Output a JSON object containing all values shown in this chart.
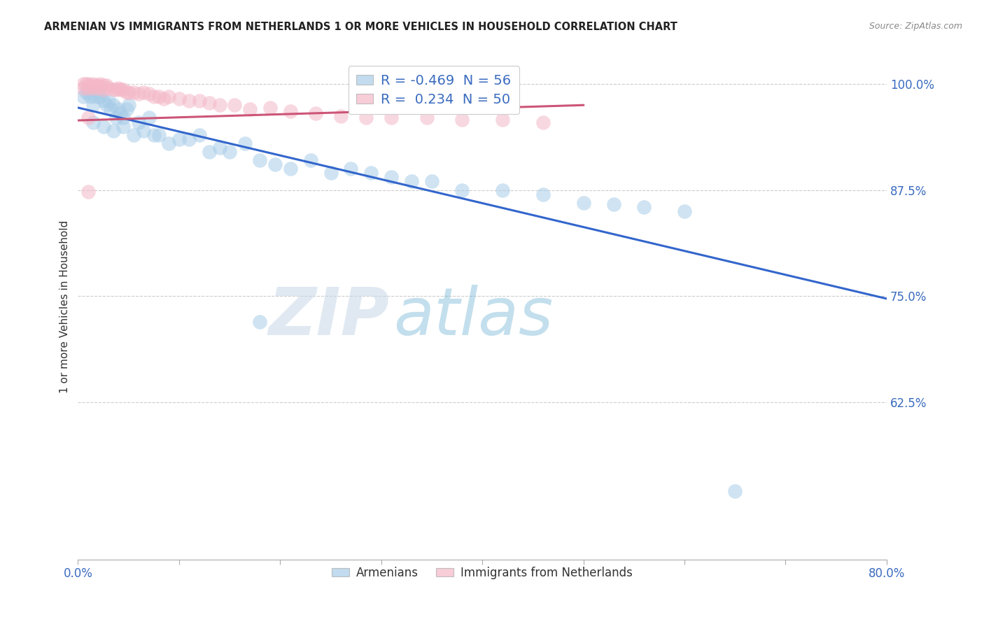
{
  "title": "ARMENIAN VS IMMIGRANTS FROM NETHERLANDS 1 OR MORE VEHICLES IN HOUSEHOLD CORRELATION CHART",
  "source": "Source: ZipAtlas.com",
  "ylabel": "1 or more Vehicles in Household",
  "legend1_label": "R = -0.469  N = 56",
  "legend2_label": "R =  0.234  N = 50",
  "legend_bottom": [
    "Armenians",
    "Immigrants from Netherlands"
  ],
  "blue_color": "#a8cce8",
  "pink_color": "#f4b8c8",
  "blue_line_color": "#3366cc",
  "pink_line_color": "#cc5577",
  "watermark_zip": "ZIP",
  "watermark_atlas": "atlas",
  "xlim": [
    0.0,
    0.8
  ],
  "ylim": [
    0.44,
    1.035
  ],
  "ytick_positions": [
    0.625,
    0.75,
    0.875,
    1.0
  ],
  "ytick_labels": [
    "62.5%",
    "75.0%",
    "87.5%",
    "100.0%"
  ],
  "xtick_positions": [
    0.0,
    0.1,
    0.2,
    0.3,
    0.4,
    0.5,
    0.6,
    0.7,
    0.8
  ],
  "blue_trend_x": [
    0.0,
    0.8
  ],
  "blue_trend_y": [
    0.972,
    0.747
  ],
  "pink_trend_x": [
    0.0,
    0.5
  ],
  "pink_trend_y": [
    0.957,
    0.975
  ],
  "arm_x": [
    0.005,
    0.008,
    0.01,
    0.012,
    0.015,
    0.018,
    0.02,
    0.022,
    0.025,
    0.028,
    0.03,
    0.032,
    0.035,
    0.038,
    0.04,
    0.042,
    0.045,
    0.048,
    0.05,
    0.015,
    0.025,
    0.035,
    0.045,
    0.055,
    0.06,
    0.065,
    0.07,
    0.075,
    0.08,
    0.09,
    0.1,
    0.11,
    0.12,
    0.13,
    0.14,
    0.15,
    0.165,
    0.18,
    0.195,
    0.21,
    0.23,
    0.25,
    0.27,
    0.29,
    0.31,
    0.33,
    0.35,
    0.38,
    0.42,
    0.46,
    0.5,
    0.53,
    0.56,
    0.6,
    0.18,
    0.65
  ],
  "arm_y": [
    0.985,
    0.99,
    0.99,
    0.985,
    0.975,
    0.985,
    0.99,
    0.985,
    0.98,
    0.975,
    0.98,
    0.97,
    0.975,
    0.96,
    0.97,
    0.965,
    0.96,
    0.97,
    0.975,
    0.955,
    0.95,
    0.945,
    0.95,
    0.94,
    0.955,
    0.945,
    0.96,
    0.94,
    0.94,
    0.93,
    0.935,
    0.935,
    0.94,
    0.92,
    0.925,
    0.92,
    0.93,
    0.91,
    0.905,
    0.9,
    0.91,
    0.895,
    0.9,
    0.895,
    0.89,
    0.885,
    0.885,
    0.875,
    0.875,
    0.87,
    0.86,
    0.858,
    0.855,
    0.85,
    0.72,
    0.52
  ],
  "neth_x": [
    0.005,
    0.008,
    0.01,
    0.012,
    0.015,
    0.018,
    0.02,
    0.022,
    0.025,
    0.028,
    0.005,
    0.01,
    0.015,
    0.02,
    0.025,
    0.03,
    0.035,
    0.038,
    0.04,
    0.042,
    0.045,
    0.048,
    0.05,
    0.055,
    0.06,
    0.065,
    0.07,
    0.075,
    0.08,
    0.085,
    0.09,
    0.1,
    0.11,
    0.12,
    0.13,
    0.14,
    0.155,
    0.17,
    0.19,
    0.21,
    0.235,
    0.26,
    0.285,
    0.31,
    0.345,
    0.38,
    0.42,
    0.46,
    0.01,
    0.01
  ],
  "neth_y": [
    1.0,
    1.0,
    1.0,
    0.998,
    1.0,
    0.998,
    0.998,
    1.0,
    0.998,
    0.998,
    0.995,
    0.995,
    0.995,
    0.995,
    0.993,
    0.995,
    0.993,
    0.993,
    0.995,
    0.993,
    0.993,
    0.99,
    0.99,
    0.99,
    0.988,
    0.99,
    0.988,
    0.985,
    0.985,
    0.983,
    0.985,
    0.983,
    0.98,
    0.98,
    0.978,
    0.975,
    0.975,
    0.97,
    0.972,
    0.968,
    0.965,
    0.962,
    0.96,
    0.96,
    0.96,
    0.958,
    0.958,
    0.955,
    0.96,
    0.873
  ]
}
